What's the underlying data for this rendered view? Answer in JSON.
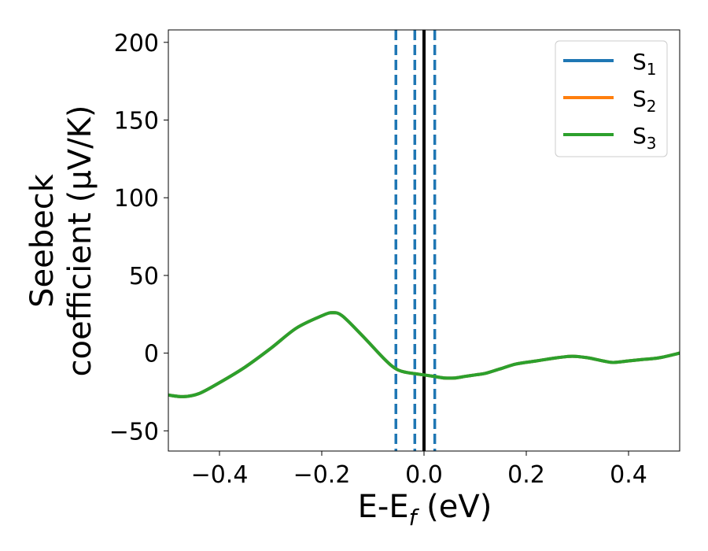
{
  "chart_data": {
    "type": "line",
    "xlabel": {
      "main": "E-E",
      "sub": "f",
      "unit": " (eV)"
    },
    "ylabel": {
      "line1": "Seebeck",
      "line2": "coefficient  (μV/K)"
    },
    "xlim": [
      -0.5,
      0.5
    ],
    "ylim": [
      -63,
      208
    ],
    "xticks": [
      -0.4,
      -0.2,
      0.0,
      0.2,
      0.4
    ],
    "xtick_labels": [
      "−0.4",
      "−0.2",
      "0.0",
      "0.2",
      "0.4"
    ],
    "yticks": [
      -50,
      0,
      50,
      100,
      150,
      200
    ],
    "ytick_labels": [
      "−50",
      "0",
      "50",
      "100",
      "150",
      "200"
    ],
    "grid": false,
    "legend_position": "top-right",
    "vlines": [
      {
        "x": -0.055,
        "style": "dashed",
        "color": "#1f77b4"
      },
      {
        "x": -0.018,
        "style": "dashed",
        "color": "#1f77b4"
      },
      {
        "x": 0.021,
        "style": "dashed",
        "color": "#1f77b4"
      },
      {
        "x": 0.0,
        "style": "solid",
        "color": "#000000"
      }
    ],
    "series": [
      {
        "name": "S",
        "sub": "1",
        "color": "#1f77b4",
        "x": [
          -0.5,
          -0.47,
          -0.44,
          -0.4,
          -0.35,
          -0.3,
          -0.25,
          -0.2,
          -0.18,
          -0.16,
          -0.12,
          -0.08,
          -0.06,
          -0.04,
          0.0,
          0.02,
          0.04,
          0.06,
          0.08,
          0.1,
          0.12,
          0.15,
          0.18,
          0.22,
          0.26,
          0.29,
          0.32,
          0.35,
          0.37,
          0.4,
          0.43,
          0.46,
          0.5
        ],
        "y": [
          -27,
          -28,
          -26,
          -19,
          -9,
          3,
          16,
          24,
          26,
          24,
          11,
          -3,
          -9,
          -12,
          -14,
          -15,
          -16,
          -16,
          -15,
          -14,
          -13,
          -10,
          -7,
          -5,
          -3,
          -2,
          -3,
          -5,
          -6,
          -5,
          -4,
          -3,
          0
        ]
      },
      {
        "name": "S",
        "sub": "2",
        "color": "#ff7f0e",
        "x": [
          -0.5,
          -0.47,
          -0.44,
          -0.4,
          -0.35,
          -0.3,
          -0.25,
          -0.2,
          -0.18,
          -0.16,
          -0.12,
          -0.08,
          -0.06,
          -0.04,
          0.0,
          0.02,
          0.04,
          0.06,
          0.08,
          0.1,
          0.12,
          0.15,
          0.18,
          0.22,
          0.26,
          0.29,
          0.32,
          0.35,
          0.37,
          0.4,
          0.43,
          0.46,
          0.5
        ],
        "y": [
          -27,
          -28,
          -26,
          -19,
          -9,
          3,
          16,
          24,
          26,
          24,
          11,
          -3,
          -9,
          -12,
          -14,
          -15,
          -16,
          -16,
          -15,
          -14,
          -13,
          -10,
          -7,
          -5,
          -3,
          -2,
          -3,
          -5,
          -6,
          -5,
          -4,
          -3,
          0
        ]
      },
      {
        "name": "S",
        "sub": "3",
        "color": "#2ca02c",
        "x": [
          -0.5,
          -0.47,
          -0.44,
          -0.4,
          -0.35,
          -0.3,
          -0.25,
          -0.2,
          -0.18,
          -0.16,
          -0.12,
          -0.08,
          -0.06,
          -0.04,
          0.0,
          0.02,
          0.04,
          0.06,
          0.08,
          0.1,
          0.12,
          0.15,
          0.18,
          0.22,
          0.26,
          0.29,
          0.32,
          0.35,
          0.37,
          0.4,
          0.43,
          0.46,
          0.5
        ],
        "y": [
          -27,
          -28,
          -26,
          -19,
          -9,
          3,
          16,
          24,
          26,
          24,
          11,
          -3,
          -9,
          -12,
          -14,
          -15,
          -16,
          -16,
          -15,
          -14,
          -13,
          -10,
          -7,
          -5,
          -3,
          -2,
          -3,
          -5,
          -6,
          -5,
          -4,
          -3,
          0
        ]
      }
    ]
  }
}
